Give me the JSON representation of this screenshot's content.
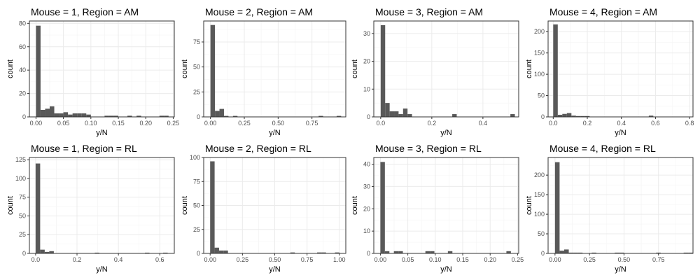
{
  "colors": {
    "bar": "#595959",
    "grid_major": "#ebebeb",
    "grid_minor": "#f5f5f5",
    "border": "#333333",
    "background": "#ffffff"
  },
  "chart_data": [
    {
      "type": "bar",
      "mouse": 1,
      "region": "AM",
      "title": "Mouse = 1, Region = AM",
      "xlabel": "y/N",
      "ylabel": "count",
      "xlim": [
        -0.012,
        0.252
      ],
      "ylim": [
        0,
        82
      ],
      "xticks": [
        0,
        0.05,
        0.1,
        0.15,
        0.2,
        0.25
      ],
      "xtick_labels": [
        "0.00",
        "0.05",
        "0.10",
        "0.15",
        "0.20",
        "0.25"
      ],
      "yticks": [
        0,
        20,
        40,
        60,
        80
      ],
      "ytick_labels": [
        "0",
        "20",
        "40",
        "60",
        "80"
      ],
      "bin_start": 0,
      "bin_width": 0.00833,
      "counts": [
        78,
        6,
        7,
        9,
        3,
        3,
        4,
        2,
        3,
        3,
        3,
        2,
        0,
        0,
        0,
        1,
        1,
        1,
        0,
        0,
        1,
        0,
        1,
        0,
        0,
        0,
        0,
        1,
        1,
        0
      ]
    },
    {
      "type": "bar",
      "mouse": 2,
      "region": "AM",
      "title": "Mouse = 2, Region = AM",
      "xlabel": "y/N",
      "ylabel": "count",
      "xlim": [
        -0.05,
        1.0
      ],
      "ylim": [
        0,
        96
      ],
      "xticks": [
        0,
        0.25,
        0.5,
        0.75
      ],
      "xtick_labels": [
        "0.00",
        "0.25",
        "0.50",
        "0.75"
      ],
      "yticks": [
        0,
        25,
        50,
        75
      ],
      "ytick_labels": [
        "0",
        "25",
        "50",
        "75"
      ],
      "bin_start": 0,
      "bin_width": 0.0333,
      "counts": [
        92,
        6,
        8,
        1,
        0,
        1,
        0,
        0,
        0,
        0,
        0,
        0,
        0,
        0,
        0,
        0,
        0,
        0,
        0,
        0,
        0,
        0,
        0,
        0,
        1,
        0,
        0,
        0,
        1,
        0
      ]
    },
    {
      "type": "bar",
      "mouse": 3,
      "region": "AM",
      "title": "Mouse = 3, Region = AM",
      "xlabel": "y/N",
      "ylabel": "count",
      "xlim": [
        -0.027,
        0.54
      ],
      "ylim": [
        0,
        34.5
      ],
      "xticks": [
        0,
        0.2,
        0.4
      ],
      "xtick_labels": [
        "0.0",
        "0.2",
        "0.4"
      ],
      "yticks": [
        0,
        10,
        20,
        30
      ],
      "ytick_labels": [
        "0",
        "10",
        "20",
        "30"
      ],
      "bin_start": 0,
      "bin_width": 0.0175,
      "counts": [
        33,
        5,
        2,
        2,
        1,
        3,
        1,
        0,
        0,
        0,
        0,
        0,
        0,
        0,
        0,
        0,
        1,
        0,
        0,
        0,
        0,
        0,
        0,
        0,
        0,
        0,
        0,
        0,
        0,
        1
      ]
    },
    {
      "type": "bar",
      "mouse": 4,
      "region": "AM",
      "title": "Mouse = 4, Region = AM",
      "xlabel": "y/N",
      "ylabel": "count",
      "xlim": [
        -0.03,
        0.82
      ],
      "ylim": [
        0,
        225
      ],
      "xticks": [
        0,
        0.2,
        0.4,
        0.6,
        0.8
      ],
      "xtick_labels": [
        "0.0",
        "0.2",
        "0.4",
        "0.6",
        "0.8"
      ],
      "yticks": [
        0,
        50,
        100,
        150,
        200
      ],
      "ytick_labels": [
        "0",
        "50",
        "100",
        "150",
        "200"
      ],
      "bin_start": 0,
      "bin_width": 0.0267,
      "counts": [
        217,
        5,
        7,
        9,
        3,
        2,
        2,
        2,
        0,
        0,
        0,
        0,
        0,
        0,
        0,
        0,
        0,
        0,
        0,
        0,
        0,
        3,
        0,
        0,
        0,
        0,
        0,
        0,
        0,
        0
      ]
    },
    {
      "type": "bar",
      "mouse": 1,
      "region": "RL",
      "title": "Mouse = 1, Region = RL",
      "xlabel": "y/N",
      "ylabel": "count",
      "xlim": [
        -0.03,
        0.67
      ],
      "ylim": [
        0,
        128
      ],
      "xticks": [
        0,
        0.2,
        0.4,
        0.6
      ],
      "xtick_labels": [
        "0.0",
        "0.2",
        "0.4",
        "0.6"
      ],
      "yticks": [
        0,
        25,
        50,
        75,
        100,
        125
      ],
      "ytick_labels": [
        "0",
        "25",
        "50",
        "75",
        "100",
        "125"
      ],
      "bin_start": 0,
      "bin_width": 0.022,
      "counts": [
        120,
        5,
        2,
        3,
        0,
        0,
        0,
        0,
        0,
        0,
        0,
        0,
        0,
        1,
        0,
        0,
        0,
        0,
        0,
        0,
        0,
        0,
        0,
        0,
        1,
        0,
        0,
        0,
        1,
        0
      ]
    },
    {
      "type": "bar",
      "mouse": 2,
      "region": "RL",
      "title": "Mouse = 2, Region = RL",
      "xlabel": "y/N",
      "ylabel": "count",
      "xlim": [
        -0.05,
        1.05
      ],
      "ylim": [
        0,
        100
      ],
      "xticks": [
        0,
        0.25,
        0.5,
        0.75,
        1.0
      ],
      "xtick_labels": [
        "0.00",
        "0.25",
        "0.50",
        "0.75",
        "1.00"
      ],
      "yticks": [
        0,
        25,
        50,
        75,
        100
      ],
      "ytick_labels": [
        "0",
        "25",
        "50",
        "75",
        "100"
      ],
      "bin_start": 0,
      "bin_width": 0.0345,
      "counts": [
        96,
        6,
        3,
        3,
        0,
        0,
        0,
        0,
        0,
        0,
        0,
        0,
        0,
        0,
        0,
        0,
        0,
        0,
        1,
        0,
        0,
        0,
        0,
        0,
        1,
        1,
        0,
        0,
        1,
        0
      ]
    },
    {
      "type": "bar",
      "mouse": 3,
      "region": "RL",
      "title": "Mouse = 3, Region = RL",
      "xlabel": "y/N",
      "ylabel": "count",
      "xlim": [
        -0.012,
        0.252
      ],
      "ylim": [
        0,
        43
      ],
      "xticks": [
        0,
        0.05,
        0.1,
        0.15,
        0.2,
        0.25
      ],
      "xtick_labels": [
        "0.00",
        "0.05",
        "0.10",
        "0.15",
        "0.20",
        "0.25"
      ],
      "yticks": [
        0,
        10,
        20,
        30,
        40
      ],
      "ytick_labels": [
        "0",
        "10",
        "20",
        "30",
        "40"
      ],
      "bin_start": 0,
      "bin_width": 0.0082,
      "counts": [
        41,
        1,
        0,
        1,
        1,
        0,
        0,
        0,
        0,
        0,
        1,
        1,
        0,
        0,
        0,
        1,
        0,
        0,
        0,
        0,
        0,
        0,
        0,
        0,
        0,
        0,
        0,
        0,
        1,
        0
      ]
    },
    {
      "type": "bar",
      "mouse": 4,
      "region": "RL",
      "title": "Mouse = 4, Region = RL",
      "xlabel": "y/N",
      "ylabel": "count",
      "xlim": [
        -0.05,
        1.0
      ],
      "ylim": [
        0,
        245
      ],
      "xticks": [
        0,
        0.25,
        0.5,
        0.75
      ],
      "xtick_labels": [
        "0.00",
        "0.25",
        "0.50",
        "0.75"
      ],
      "yticks": [
        0,
        50,
        100,
        150,
        200
      ],
      "ytick_labels": [
        "0",
        "50",
        "100",
        "150",
        "200"
      ],
      "bin_start": 0,
      "bin_width": 0.0333,
      "counts": [
        233,
        7,
        10,
        2,
        2,
        2,
        0,
        0,
        2,
        0,
        0,
        0,
        0,
        2,
        2,
        0,
        0,
        0,
        0,
        0,
        0,
        0,
        2,
        0,
        0,
        0,
        0,
        0,
        2,
        2
      ]
    }
  ]
}
